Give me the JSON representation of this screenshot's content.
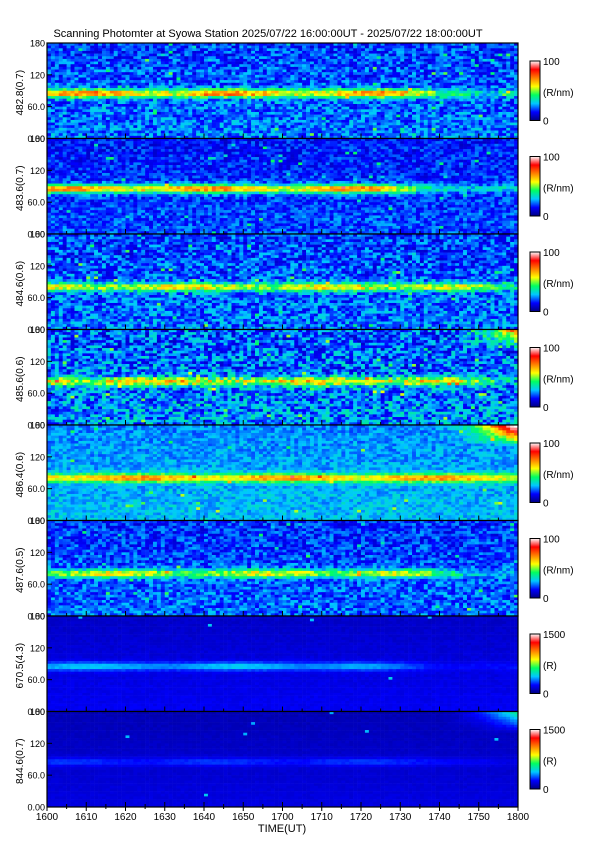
{
  "title": "Scanning Photomter at Syowa Station  2025/07/22 16:00:00UT - 2025/07/22 18:00:00UT",
  "chart_data": {
    "type": "heatmap",
    "title": "Scanning Photomter at Syowa Station  2025/07/22 16:00:00UT - 2025/07/22 18:00:00UT",
    "xlabel": "TIME(UT)",
    "x_tick_labels": [
      "1600",
      "1610",
      "1620",
      "1630",
      "1640",
      "1650",
      "1700",
      "1710",
      "1720",
      "1730",
      "1740",
      "1750",
      "1800"
    ],
    "xlim": [
      "1600",
      "1800"
    ],
    "y_tick_labels": [
      "0.00",
      "60.0",
      "120",
      "180"
    ],
    "ylim": [
      0,
      180
    ],
    "colormap": [
      "#000080",
      "#0000ff",
      "#00c8ff",
      "#00ff60",
      "#ffff00",
      "#ff8000",
      "#ff0000",
      "#ffffff"
    ],
    "panels": [
      {
        "ylabel": "482.8(0.7)",
        "cbar_max_label": "100",
        "cbar_min_label": "0",
        "cbar_unit": "(R/nm)",
        "background": 0.18,
        "noise": 0.55,
        "band_center": 85,
        "band_peak": 0.52,
        "band_fade_end": 0.75,
        "emission_top_right": 0
      },
      {
        "ylabel": "483.6(0.7)",
        "cbar_max_label": "100",
        "cbar_min_label": "0",
        "cbar_unit": "(R/nm)",
        "background": 0.15,
        "noise": 0.45,
        "band_center": 85,
        "band_peak": 0.56,
        "band_fade_end": 0.7,
        "emission_top_right": 0
      },
      {
        "ylabel": "484.6(0.6)",
        "cbar_max_label": "100",
        "cbar_min_label": "0",
        "cbar_unit": "(R/nm)",
        "background": 0.18,
        "noise": 0.6,
        "band_center": 80,
        "band_peak": 0.42,
        "band_fade_end": 0.85,
        "emission_top_right": 0
      },
      {
        "ylabel": "485.6(0.6)",
        "cbar_max_label": "100",
        "cbar_min_label": "0",
        "cbar_unit": "(R/nm)",
        "background": 0.2,
        "noise": 0.75,
        "band_center": 82,
        "band_peak": 0.44,
        "band_fade_end": 0.8,
        "emission_top_right": 0.55
      },
      {
        "ylabel": "486.4(0.6)",
        "cbar_max_label": "100",
        "cbar_min_label": "0",
        "cbar_unit": "(R/nm)",
        "background": 0.24,
        "noise": 0.35,
        "band_center": 80,
        "band_peak": 0.46,
        "band_fade_end": 1.0,
        "emission_top_right": 0.95
      },
      {
        "ylabel": "487.6(0.5)",
        "cbar_max_label": "100",
        "cbar_min_label": "0",
        "cbar_unit": "(R/nm)",
        "background": 0.17,
        "noise": 0.5,
        "band_center": 80,
        "band_peak": 0.4,
        "band_fade_end": 0.75,
        "emission_top_right": 0
      },
      {
        "ylabel": "670.5(4.3)",
        "cbar_max_label": "1500",
        "cbar_min_label": "0",
        "cbar_unit": "(R)",
        "background": 0.08,
        "noise": 0.08,
        "band_center": 85,
        "band_peak": 0.2,
        "band_fade_end": 0.65,
        "emission_top_right": 0
      },
      {
        "ylabel": "844.6(0.7)",
        "cbar_max_label": "1500",
        "cbar_min_label": "0",
        "cbar_unit": "(R)",
        "background": 0.06,
        "noise": 0.06,
        "band_center": 85,
        "band_peak": 0.1,
        "band_fade_end": 0.8,
        "emission_top_right": 0.35
      }
    ]
  }
}
